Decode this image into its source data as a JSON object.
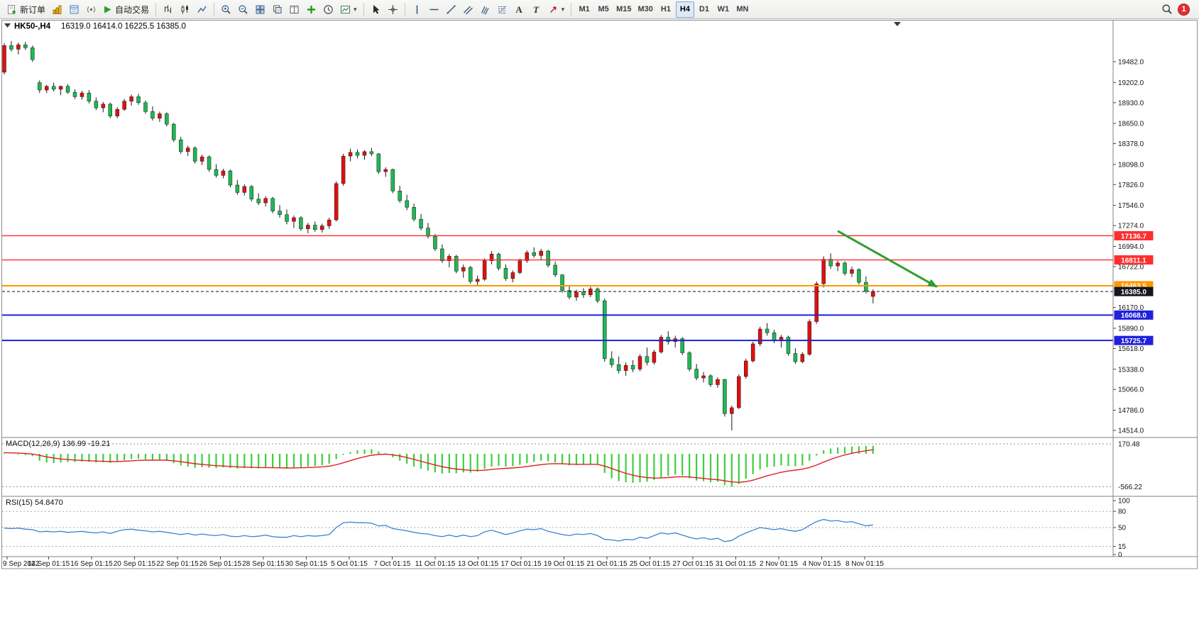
{
  "toolbar": {
    "new_order_label": "新订单",
    "auto_trading_label": "自动交易",
    "text_tool_label": "A",
    "label_tool_label": "T",
    "timeframes": [
      "M1",
      "M5",
      "M15",
      "M30",
      "H1",
      "H4",
      "D1",
      "W1",
      "MN"
    ],
    "active_timeframe": "H4",
    "notification_badge": "1"
  },
  "icons": {
    "caret_down": "▾"
  },
  "chart": {
    "symbol_period": "HK50-,H4",
    "ohlc": "16319.0 16414.0 16225.5 16385.0",
    "macd_label": "MACD(12,26,9) 136.99 -19.21",
    "rsi_label": "RSI(15) 54.8470"
  },
  "chart_data": {
    "type": "candlestick",
    "symbol": "HK50-",
    "timeframe": "H4",
    "title": "HK50-,H4",
    "grid": false,
    "legend_position": "none",
    "colors": {
      "up": "#e01010",
      "down": "#1db954",
      "wick": "#1a1a1a",
      "macd_bar": "#3ecf3e",
      "macd_signal": "#e02020",
      "rsi": "#3b82d0",
      "level_red": "#ff2e2e",
      "level_orange": "#ff9800",
      "level_blue": "#2020dd",
      "bid_label": "#15151f"
    },
    "y_axis_ticks": [
      19482,
      19202,
      18930,
      18650,
      18378,
      18098,
      17826,
      17546,
      17274,
      16994,
      16722,
      16170,
      15890,
      15618,
      15338,
      15066,
      14786,
      14514
    ],
    "price_lines": [
      {
        "price": 17136.7,
        "label": "17136.7",
        "color": "#ff2e2e",
        "width": 1.4,
        "dashed": false
      },
      {
        "price": 16811.1,
        "label": "16811.1",
        "color": "#ff2e2e",
        "width": 1.4,
        "dashed": false
      },
      {
        "price": 16463.5,
        "label": "16463.5",
        "color": "#ff9800",
        "width": 2,
        "dashed": false
      },
      {
        "price": 16385.0,
        "label": "16385.0",
        "color": "#15151f",
        "width": 1,
        "dashed": true
      },
      {
        "price": 16068.0,
        "label": "16068.0",
        "color": "#2020dd",
        "width": 2,
        "dashed": false
      },
      {
        "price": 15725.7,
        "label": "15725.7",
        "color": "#2020dd",
        "width": 2,
        "dashed": false
      }
    ],
    "candles": [
      [
        19340,
        19730,
        19310,
        19700
      ],
      [
        19700,
        19760,
        19620,
        19650
      ],
      [
        19650,
        19740,
        19580,
        19710
      ],
      [
        19710,
        19750,
        19640,
        19670
      ],
      [
        19670,
        19700,
        19480,
        19510
      ],
      [
        19200,
        19230,
        19060,
        19100
      ],
      [
        19100,
        19170,
        19060,
        19150
      ],
      [
        19150,
        19200,
        19080,
        19110
      ],
      [
        19110,
        19160,
        19030,
        19150
      ],
      [
        19150,
        19180,
        19050,
        19070
      ],
      [
        19070,
        19110,
        18980,
        19010
      ],
      [
        19010,
        19090,
        18970,
        19060
      ],
      [
        19060,
        19100,
        18920,
        18950
      ],
      [
        18950,
        19000,
        18830,
        18860
      ],
      [
        18860,
        18940,
        18800,
        18910
      ],
      [
        18910,
        18930,
        18720,
        18750
      ],
      [
        18750,
        18870,
        18720,
        18840
      ],
      [
        18840,
        18980,
        18820,
        18950
      ],
      [
        18950,
        19040,
        18890,
        19010
      ],
      [
        19010,
        19050,
        18900,
        18930
      ],
      [
        18930,
        18960,
        18780,
        18810
      ],
      [
        18810,
        18880,
        18690,
        18720
      ],
      [
        18720,
        18810,
        18670,
        18780
      ],
      [
        18780,
        18800,
        18610,
        18640
      ],
      [
        18640,
        18660,
        18400,
        18430
      ],
      [
        18430,
        18470,
        18240,
        18270
      ],
      [
        18270,
        18350,
        18210,
        18320
      ],
      [
        18320,
        18340,
        18110,
        18140
      ],
      [
        18140,
        18230,
        18090,
        18200
      ],
      [
        18200,
        18220,
        18000,
        18030
      ],
      [
        18030,
        18100,
        17920,
        17950
      ],
      [
        17950,
        18040,
        17910,
        18010
      ],
      [
        18010,
        18030,
        17790,
        17820
      ],
      [
        17820,
        17890,
        17690,
        17720
      ],
      [
        17720,
        17830,
        17680,
        17800
      ],
      [
        17800,
        17820,
        17600,
        17630
      ],
      [
        17630,
        17710,
        17550,
        17580
      ],
      [
        17580,
        17670,
        17530,
        17640
      ],
      [
        17640,
        17660,
        17440,
        17470
      ],
      [
        17470,
        17550,
        17380,
        17420
      ],
      [
        17420,
        17490,
        17290,
        17330
      ],
      [
        17330,
        17410,
        17240,
        17380
      ],
      [
        17380,
        17400,
        17200,
        17230
      ],
      [
        17230,
        17310,
        17170,
        17280
      ],
      [
        17280,
        17330,
        17190,
        17220
      ],
      [
        17220,
        17300,
        17180,
        17270
      ],
      [
        17270,
        17380,
        17230,
        17350
      ],
      [
        17350,
        17870,
        17330,
        17840
      ],
      [
        17840,
        18240,
        17810,
        18210
      ],
      [
        18210,
        18310,
        18140,
        18260
      ],
      [
        18260,
        18300,
        18180,
        18220
      ],
      [
        18220,
        18290,
        18160,
        18270
      ],
      [
        18270,
        18320,
        18210,
        18240
      ],
      [
        18240,
        18250,
        17970,
        18000
      ],
      [
        18000,
        18060,
        17930,
        18030
      ],
      [
        18030,
        18040,
        17710,
        17740
      ],
      [
        17740,
        17810,
        17580,
        17610
      ],
      [
        17610,
        17690,
        17480,
        17520
      ],
      [
        17520,
        17570,
        17330,
        17360
      ],
      [
        17360,
        17430,
        17210,
        17240
      ],
      [
        17240,
        17310,
        17100,
        17130
      ],
      [
        17130,
        17160,
        16930,
        16960
      ],
      [
        16960,
        17020,
        16770,
        16800
      ],
      [
        16800,
        16890,
        16710,
        16860
      ],
      [
        16860,
        16880,
        16630,
        16660
      ],
      [
        16660,
        16750,
        16570,
        16710
      ],
      [
        16710,
        16730,
        16490,
        16520
      ],
      [
        16520,
        16600,
        16460,
        16550
      ],
      [
        16550,
        16830,
        16530,
        16800
      ],
      [
        16800,
        16930,
        16750,
        16890
      ],
      [
        16890,
        16910,
        16670,
        16700
      ],
      [
        16700,
        16750,
        16530,
        16560
      ],
      [
        16560,
        16670,
        16510,
        16640
      ],
      [
        16640,
        16830,
        16620,
        16800
      ],
      [
        16800,
        16940,
        16770,
        16910
      ],
      [
        16910,
        16980,
        16840,
        16870
      ],
      [
        16870,
        16960,
        16810,
        16930
      ],
      [
        16930,
        16950,
        16710,
        16740
      ],
      [
        16740,
        16790,
        16580,
        16610
      ],
      [
        16610,
        16620,
        16370,
        16400
      ],
      [
        16400,
        16460,
        16280,
        16310
      ],
      [
        16310,
        16410,
        16260,
        16380
      ],
      [
        16380,
        16430,
        16300,
        16340
      ],
      [
        16340,
        16450,
        16310,
        16420
      ],
      [
        16420,
        16440,
        16230,
        16260
      ],
      [
        16260,
        16290,
        15440,
        15480
      ],
      [
        15480,
        15580,
        15360,
        15400
      ],
      [
        15400,
        15510,
        15280,
        15320
      ],
      [
        15320,
        15430,
        15250,
        15390
      ],
      [
        15390,
        15460,
        15300,
        15340
      ],
      [
        15340,
        15540,
        15310,
        15510
      ],
      [
        15510,
        15630,
        15390,
        15430
      ],
      [
        15430,
        15600,
        15400,
        15570
      ],
      [
        15570,
        15800,
        15550,
        15770
      ],
      [
        15770,
        15850,
        15670,
        15710
      ],
      [
        15710,
        15790,
        15630,
        15750
      ],
      [
        15750,
        15770,
        15530,
        15560
      ],
      [
        15560,
        15580,
        15310,
        15340
      ],
      [
        15340,
        15410,
        15190,
        15220
      ],
      [
        15220,
        15300,
        15160,
        15250
      ],
      [
        15250,
        15270,
        15100,
        15130
      ],
      [
        15130,
        15230,
        15090,
        15200
      ],
      [
        15200,
        15210,
        14700,
        14740
      ],
      [
        14740,
        14850,
        14514,
        14820
      ],
      [
        14820,
        15270,
        14800,
        15240
      ],
      [
        15240,
        15480,
        15210,
        15450
      ],
      [
        15450,
        15710,
        15430,
        15680
      ],
      [
        15680,
        15910,
        15650,
        15880
      ],
      [
        15880,
        15960,
        15790,
        15830
      ],
      [
        15830,
        15870,
        15690,
        15720
      ],
      [
        15720,
        15800,
        15630,
        15770
      ],
      [
        15770,
        15790,
        15520,
        15550
      ],
      [
        15550,
        15620,
        15410,
        15440
      ],
      [
        15440,
        15570,
        15420,
        15540
      ],
      [
        15540,
        16010,
        15520,
        15980
      ],
      [
        15980,
        16520,
        15950,
        16490
      ],
      [
        16490,
        16860,
        16440,
        16820
      ],
      [
        16820,
        16900,
        16690,
        16730
      ],
      [
        16730,
        16800,
        16660,
        16770
      ],
      [
        16770,
        16790,
        16600,
        16630
      ],
      [
        16630,
        16720,
        16580,
        16680
      ],
      [
        16680,
        16700,
        16480,
        16510
      ],
      [
        16510,
        16590,
        16360,
        16390
      ],
      [
        16319,
        16414,
        16225.5,
        16385
      ]
    ],
    "macd": {
      "label": "MACD(12,26,9)",
      "main_value": 136.99,
      "signal_value": -19.21,
      "levels": [
        170.48,
        -566.22
      ],
      "signal_period": 9,
      "histogram": [
        20,
        0,
        -10,
        -20,
        -40,
        -120,
        -150,
        -160,
        -150,
        -140,
        -140,
        -135,
        -140,
        -150,
        -145,
        -155,
        -130,
        -110,
        -90,
        -85,
        -95,
        -110,
        -105,
        -115,
        -160,
        -200,
        -220,
        -240,
        -230,
        -240,
        -245,
        -235,
        -245,
        -255,
        -245,
        -250,
        -250,
        -240,
        -245,
        -250,
        -255,
        -240,
        -230,
        -220,
        -210,
        -195,
        -170,
        -90,
        -20,
        30,
        60,
        75,
        80,
        40,
        10,
        -60,
        -120,
        -170,
        -220,
        -260,
        -290,
        -320,
        -340,
        -330,
        -335,
        -320,
        -325,
        -305,
        -260,
        -220,
        -210,
        -220,
        -215,
        -190,
        -160,
        -140,
        -120,
        -130,
        -150,
        -180,
        -200,
        -195,
        -185,
        -175,
        -185,
        -330,
        -420,
        -470,
        -490,
        -500,
        -490,
        -480,
        -450,
        -410,
        -380,
        -360,
        -370,
        -420,
        -460,
        -470,
        -490,
        -480,
        -540,
        -566.22,
        -520,
        -430,
        -350,
        -270,
        -230,
        -220,
        -200,
        -210,
        -215,
        -200,
        -120,
        -30,
        60,
        90,
        110,
        118,
        125,
        130,
        134,
        136.99
      ]
    },
    "rsi": {
      "label": "RSI(15)",
      "value": 54.847,
      "levels": [
        80,
        50,
        15
      ],
      "axis_labels": [
        100,
        80,
        50,
        15,
        0
      ],
      "values": [
        49,
        48,
        49,
        47,
        46,
        42,
        43,
        42,
        43,
        41,
        42,
        43,
        41,
        40,
        42,
        39,
        43,
        46,
        47,
        45,
        44,
        42,
        43,
        41,
        39,
        37,
        39,
        36,
        38,
        36,
        35,
        37,
        34,
        33,
        35,
        33,
        34,
        36,
        33,
        32,
        32,
        35,
        33,
        35,
        34,
        35,
        37,
        50,
        59,
        60,
        59,
        59,
        58,
        53,
        54,
        48,
        46,
        44,
        41,
        39,
        38,
        35,
        33,
        36,
        33,
        36,
        33,
        35,
        42,
        45,
        41,
        37,
        40,
        44,
        47,
        46,
        48,
        43,
        40,
        37,
        35,
        38,
        37,
        39,
        35,
        28,
        27,
        25,
        28,
        27,
        32,
        30,
        35,
        40,
        38,
        40,
        36,
        32,
        29,
        31,
        28,
        30,
        24,
        26,
        34,
        40,
        45,
        50,
        48,
        46,
        48,
        45,
        43,
        46,
        54,
        61,
        65,
        62,
        63,
        60,
        61,
        57,
        53,
        54.85
      ]
    },
    "time_axis": [
      "9 Sep 2022",
      "14 Sep 01:15",
      "16 Sep 01:15",
      "20 Sep 01:15",
      "22 Sep 01:15",
      "26 Sep 01:15",
      "28 Sep 01:15",
      "30 Sep 01:15",
      "5 Oct 01:15",
      "7 Oct 01:15",
      "11 Oct 01:15",
      "13 Oct 01:15",
      "17 Oct 01:15",
      "19 Oct 01:15",
      "21 Oct 01:15",
      "25 Oct 01:15",
      "27 Oct 01:15",
      "31 Oct 01:15",
      "2 Nov 01:15",
      "4 Nov 01:15",
      "8 Nov 01:15"
    ],
    "objects": [
      {
        "type": "trend-arrow",
        "from": {
          "bar": 118,
          "price": 17200
        },
        "to": {
          "bar": 132,
          "price": 16450
        },
        "color": "#2f9e2f"
      }
    ]
  }
}
